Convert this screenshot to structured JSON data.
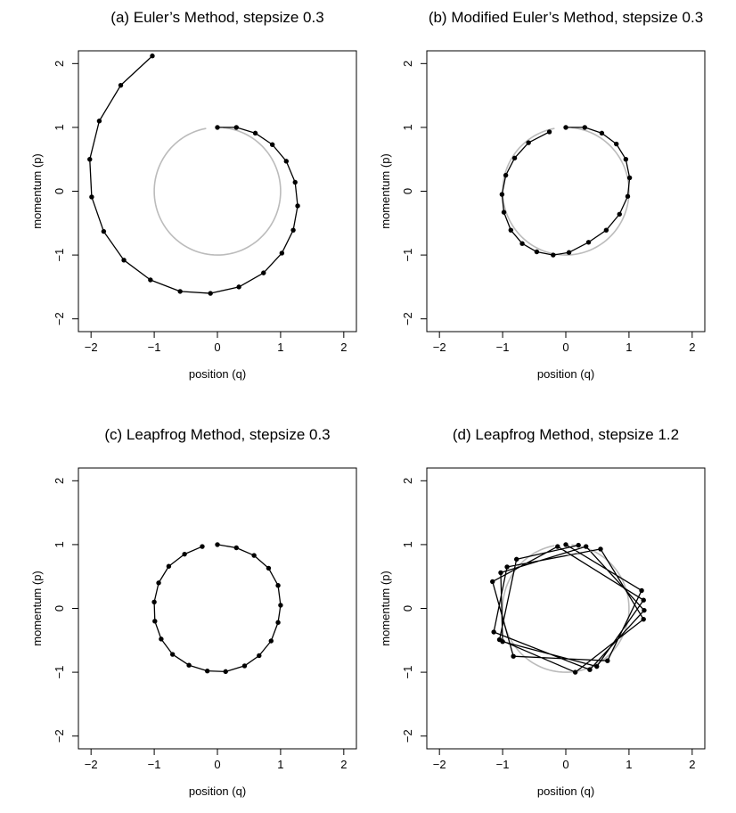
{
  "chart_data": [
    {
      "type": "line",
      "title": "(a) Euler’s Method, stepsize 0.3",
      "xlabel": "position (q)",
      "ylabel": "momentum (p)",
      "xlim": [
        -2.2,
        2.2
      ],
      "ylim": [
        -2.2,
        2.2
      ],
      "xticks": [
        -2,
        -1,
        0,
        1,
        2
      ],
      "yticks": [
        -2,
        -1,
        0,
        1,
        2
      ],
      "x_tick_labels": [
        "−2",
        "−1",
        "0",
        "1",
        "2"
      ],
      "y_tick_labels": [
        "−2",
        "−1",
        "0",
        "1",
        "2"
      ],
      "grid": false,
      "reference_circle": {
        "present": true,
        "radius": 1,
        "color": "#bbbbbb"
      },
      "series": [
        {
          "color": "#000000",
          "points": [
            [
              0.0,
              1.0
            ],
            [
              0.3,
              1.0
            ],
            [
              0.6,
              0.91
            ],
            [
              0.87,
              0.73
            ],
            [
              1.09,
              0.47
            ],
            [
              1.23,
              0.14
            ],
            [
              1.27,
              -0.23
            ],
            [
              1.2,
              -0.61
            ],
            [
              1.02,
              -0.97
            ],
            [
              0.73,
              -1.28
            ],
            [
              0.34,
              -1.5
            ],
            [
              -0.11,
              -1.6
            ],
            [
              -0.59,
              -1.57
            ],
            [
              -1.06,
              -1.39
            ],
            [
              -1.48,
              -1.08
            ],
            [
              -1.8,
              -0.63
            ],
            [
              -1.99,
              -0.09
            ],
            [
              -2.02,
              0.5
            ],
            [
              -1.87,
              1.1
            ],
            [
              -1.53,
              1.66
            ],
            [
              -1.03,
              2.12
            ]
          ]
        }
      ]
    },
    {
      "type": "line",
      "title": "(b) Modified Euler’s Method, stepsize 0.3",
      "xlabel": "position (q)",
      "ylabel": "momentum (p)",
      "xlim": [
        -2.2,
        2.2
      ],
      "ylim": [
        -2.2,
        2.2
      ],
      "xticks": [
        -2,
        -1,
        0,
        1,
        2
      ],
      "yticks": [
        -2,
        -1,
        0,
        1,
        2
      ],
      "x_tick_labels": [
        "−2",
        "−1",
        "0",
        "1",
        "2"
      ],
      "y_tick_labels": [
        "−2",
        "−1",
        "0",
        "1",
        "2"
      ],
      "grid": false,
      "reference_circle": {
        "present": true,
        "radius": 1,
        "color": "#bbbbbb"
      },
      "series": [
        {
          "color": "#000000",
          "points": [
            [
              0.0,
              1.0
            ],
            [
              0.3,
              1.0
            ],
            [
              0.57,
              0.91
            ],
            [
              0.8,
              0.74
            ],
            [
              0.95,
              0.5
            ],
            [
              1.01,
              0.21
            ],
            [
              0.98,
              -0.08
            ],
            [
              0.85,
              -0.36
            ],
            [
              0.64,
              -0.61
            ],
            [
              0.36,
              -0.8
            ],
            [
              0.05,
              -0.96
            ],
            [
              -0.2,
              -1.0
            ],
            [
              -0.46,
              -0.95
            ],
            [
              -0.69,
              -0.82
            ],
            [
              -0.87,
              -0.61
            ],
            [
              -0.98,
              -0.33
            ],
            [
              -1.01,
              -0.05
            ],
            [
              -0.95,
              0.25
            ],
            [
              -0.81,
              0.52
            ],
            [
              -0.59,
              0.76
            ],
            [
              -0.26,
              0.93
            ]
          ]
        }
      ]
    },
    {
      "type": "line",
      "title": "(c) Leapfrog Method, stepsize 0.3",
      "xlabel": "position (q)",
      "ylabel": "momentum (p)",
      "xlim": [
        -2.2,
        2.2
      ],
      "ylim": [
        -2.2,
        2.2
      ],
      "xticks": [
        -2,
        -1,
        0,
        1,
        2
      ],
      "yticks": [
        -2,
        -1,
        0,
        1,
        2
      ],
      "x_tick_labels": [
        "−2",
        "−1",
        "0",
        "1",
        "2"
      ],
      "y_tick_labels": [
        "−2",
        "−1",
        "0",
        "1",
        "2"
      ],
      "grid": false,
      "reference_circle": {
        "present": false
      },
      "series": [
        {
          "color": "#000000",
          "points": [
            [
              0.0,
              1.0
            ],
            [
              0.3,
              0.95
            ],
            [
              0.58,
              0.83
            ],
            [
              0.81,
              0.63
            ],
            [
              0.96,
              0.36
            ],
            [
              1.0,
              0.05
            ],
            [
              0.96,
              -0.22
            ],
            [
              0.85,
              -0.51
            ],
            [
              0.66,
              -0.74
            ],
            [
              0.43,
              -0.9
            ],
            [
              0.13,
              -0.99
            ],
            [
              -0.16,
              -0.98
            ],
            [
              -0.45,
              -0.89
            ],
            [
              -0.71,
              -0.72
            ],
            [
              -0.89,
              -0.48
            ],
            [
              -0.99,
              -0.2
            ],
            [
              -1.0,
              0.1
            ],
            [
              -0.93,
              0.4
            ],
            [
              -0.77,
              0.66
            ],
            [
              -0.52,
              0.85
            ],
            [
              -0.24,
              0.97
            ]
          ]
        }
      ]
    },
    {
      "type": "line",
      "title": "(d) Leapfrog Method, stepsize 1.2",
      "xlabel": "position (q)",
      "ylabel": "momentum (p)",
      "xlim": [
        -2.2,
        2.2
      ],
      "ylim": [
        -2.2,
        2.2
      ],
      "xticks": [
        -2,
        -1,
        0,
        1,
        2
      ],
      "yticks": [
        -2,
        -1,
        0,
        1,
        2
      ],
      "x_tick_labels": [
        "−2",
        "−1",
        "0",
        "1",
        "2"
      ],
      "y_tick_labels": [
        "−2",
        "−1",
        "0",
        "1",
        "2"
      ],
      "grid": false,
      "reference_circle": {
        "present": true,
        "radius": 1,
        "color": "#bbbbbb"
      },
      "series": [
        {
          "color": "#000000",
          "points": [
            [
              0.0,
              1.0
            ],
            [
              1.2,
              0.28
            ],
            [
              0.66,
              -0.82
            ],
            [
              -0.83,
              -0.75
            ],
            [
              -1.16,
              0.42
            ],
            [
              -0.13,
              0.97
            ],
            [
              1.23,
              0.13
            ],
            [
              0.49,
              -0.91
            ],
            [
              -1.0,
              -0.52
            ],
            [
              -1.03,
              0.56
            ],
            [
              0.32,
              0.97
            ],
            [
              1.24,
              -0.03
            ],
            [
              0.38,
              -0.96
            ],
            [
              -1.14,
              -0.37
            ],
            [
              -0.93,
              0.65
            ],
            [
              0.55,
              0.93
            ],
            [
              1.23,
              -0.17
            ],
            [
              0.15,
              -1.0
            ],
            [
              -1.05,
              -0.49
            ],
            [
              -0.78,
              0.77
            ],
            [
              0.2,
              0.99
            ]
          ]
        }
      ]
    }
  ]
}
